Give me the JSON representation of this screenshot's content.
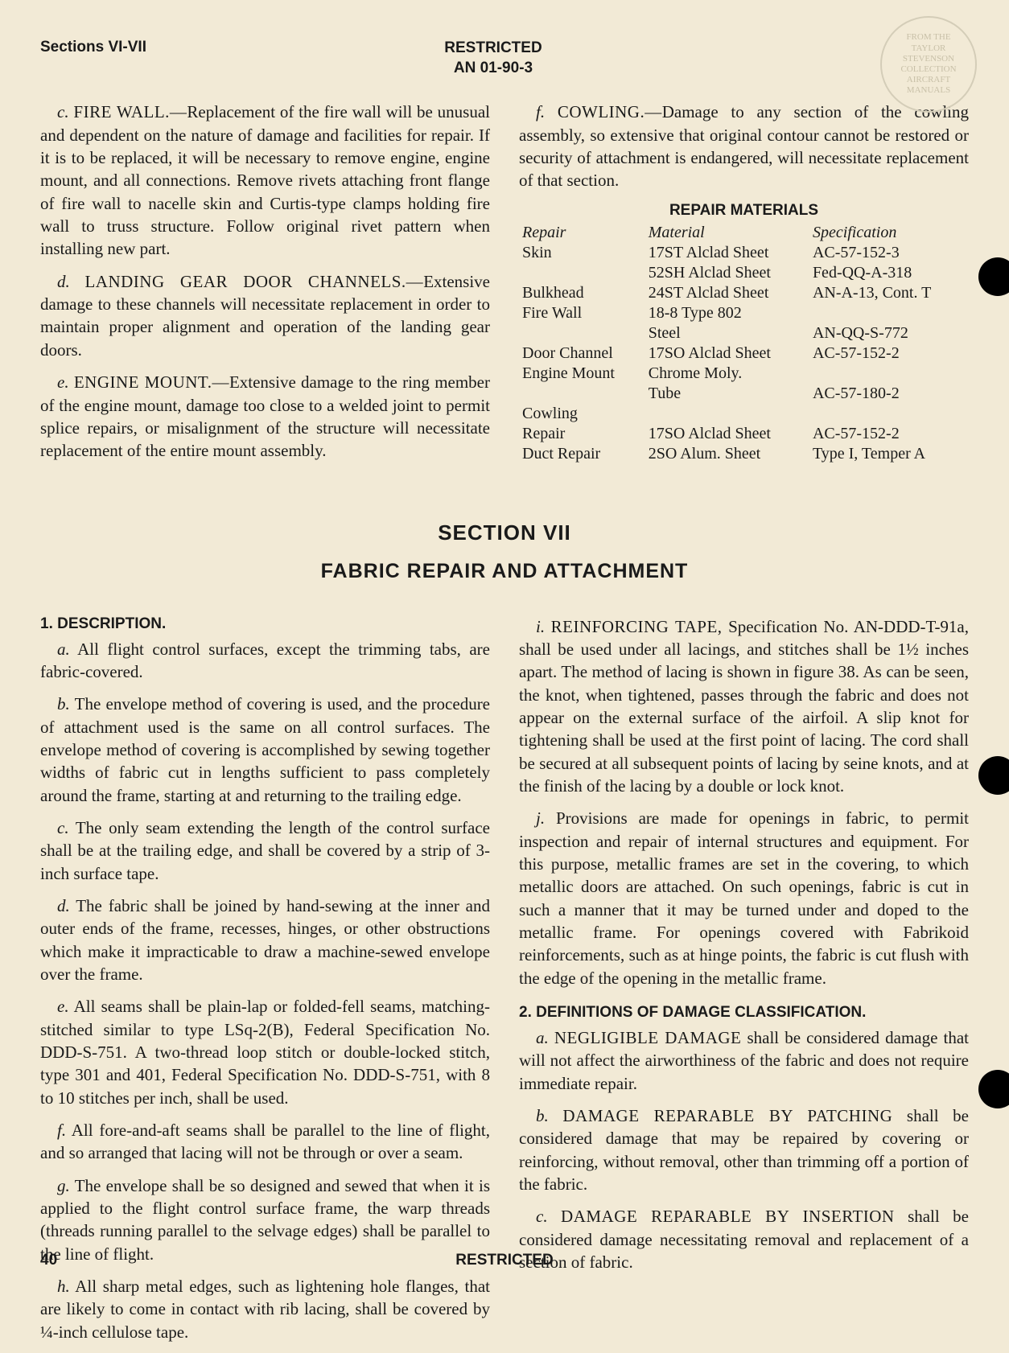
{
  "header": {
    "sections_label": "Sections VI-VII",
    "restricted": "RESTRICTED",
    "doc_no": "AN 01-90-3"
  },
  "stamp": {
    "line1": "FROM THE",
    "line2": "TAYLOR",
    "line3": "STEVENSON",
    "line4": "COLLECTION",
    "line5": "AIRCRAFT",
    "line6": "MANUALS"
  },
  "top_left": {
    "c_label": "c.",
    "c_title": "FIRE WALL.—",
    "c_text": "Replacement of the fire wall will be unusual and dependent on the nature of damage and facilities for repair. If it is to be replaced, it will be necessary to remove engine, engine mount, and all connections. Remove rivets attaching front flange of fire wall to nacelle skin and Curtis-type clamps holding fire wall to truss structure. Follow original rivet pattern when installing new part.",
    "d_label": "d.",
    "d_title": "LANDING GEAR DOOR CHANNELS.—",
    "d_text": "Extensive damage to these channels will necessitate replacement in order to maintain proper alignment and operation of the landing gear doors.",
    "e_label": "e.",
    "e_title": "ENGINE MOUNT.—",
    "e_text": "Extensive damage to the ring member of the engine mount, damage too close to a welded joint to permit splice repairs, or misalignment of the structure will necessitate replacement of the entire mount assembly."
  },
  "top_right": {
    "f_label": "f.",
    "f_title": "COWLING.—",
    "f_text": "Damage to any section of the cowling assembly, so extensive that original contour cannot be restored or security of attachment is endangered, will necessitate replacement of that section.",
    "table_title": "REPAIR MATERIALS",
    "cols": {
      "c1": "Repair",
      "c2": "Material",
      "c3": "Specification"
    },
    "rows": [
      {
        "c1": "Skin",
        "c2": "17ST Alclad Sheet",
        "c3": "AC-57-152-3"
      },
      {
        "c1": "",
        "c2": "52SH Alclad Sheet",
        "c3": "Fed-QQ-A-318"
      },
      {
        "c1": "Bulkhead",
        "c2": "24ST Alclad Sheet",
        "c3": "AN-A-13, Cont. T"
      },
      {
        "c1": "Fire Wall",
        "c2": "18-8 Type 802",
        "c3": ""
      },
      {
        "c1": "",
        "c2": "Steel",
        "c3": "AN-QQ-S-772"
      },
      {
        "c1": "Door Channel",
        "c2": "17SO Alclad Sheet",
        "c3": "AC-57-152-2"
      },
      {
        "c1": "Engine Mount",
        "c2": "Chrome Moly.",
        "c3": ""
      },
      {
        "c1": "",
        "c2": "Tube",
        "c3": "AC-57-180-2"
      },
      {
        "c1": "Cowling",
        "c2": "",
        "c3": ""
      },
      {
        "c1": "Repair",
        "c2": "17SO Alclad Sheet",
        "c3": "AC-57-152-2"
      },
      {
        "c1": "Duct Repair",
        "c2": "2SO Alum. Sheet",
        "c3": "Type I, Temper A"
      }
    ]
  },
  "section7": {
    "title": "SECTION VII",
    "subtitle": "FABRIC REPAIR AND ATTACHMENT"
  },
  "bottom_left": {
    "h1": "1. DESCRIPTION.",
    "a_label": "a.",
    "a_text": "All flight control surfaces, except the trimming tabs, are fabric-covered.",
    "b_label": "b.",
    "b_text": "The envelope method of covering is used, and the procedure of attachment used is the same on all control surfaces. The envelope method of covering is accomplished by sewing together widths of fabric cut in lengths sufficient to pass completely around the frame, starting at and returning to the trailing edge.",
    "c_label": "c.",
    "c_text": "The only seam extending the length of the control surface shall be at the trailing edge, and shall be covered by a strip of 3-inch surface tape.",
    "d_label": "d.",
    "d_text": "The fabric shall be joined by hand-sewing at the inner and outer ends of the frame, recesses, hinges, or other obstructions which make it impracticable to draw a machine-sewed envelope over the frame.",
    "e_label": "e.",
    "e_text": "All seams shall be plain-lap or folded-fell seams, matching-stitched similar to type LSq-2(B), Federal Specification No. DDD-S-751. A two-thread loop stitch or double-locked stitch, type 301 and 401, Federal Specification No. DDD-S-751, with 8 to 10 stitches per inch, shall be used.",
    "f_label": "f.",
    "f_text": "All fore-and-aft seams shall be parallel to the line of flight, and so arranged that lacing will not be through or over a seam.",
    "g_label": "g.",
    "g_text": "The envelope shall be so designed and sewed that when it is applied to the flight control surface frame, the warp threads (threads running parallel to the selvage edges) shall be parallel to the line of flight.",
    "h_label": "h.",
    "h_text": "All sharp metal edges, such as lightening hole flanges, that are likely to come in contact with rib lacing, shall be covered by ¼-inch cellulose tape."
  },
  "bottom_right": {
    "i_label": "i.",
    "i_title": "REINFORCING TAPE,",
    "i_text": "Specification No. AN-DDD-T-91a, shall be used under all lacings, and stitches shall be 1½ inches apart. The method of lacing is shown in figure 38. As can be seen, the knot, when tightened, passes through the fabric and does not appear on the external surface of the airfoil. A slip knot for tightening shall be used at the first point of lacing. The cord shall be secured at all subsequent points of lacing by seine knots, and at the finish of the lacing by a double or lock knot.",
    "j_label": "j.",
    "j_text": "Provisions are made for openings in fabric, to permit inspection and repair of internal structures and equipment. For this purpose, metallic frames are set in the covering, to which metallic doors are attached. On such openings, fabric is cut in such a manner that it may be turned under and doped to the metallic frame. For openings covered with Fabrikoid reinforcements, such as at hinge points, the fabric is cut flush with the edge of the opening in the metallic frame.",
    "h2": "2. DEFINITIONS OF DAMAGE CLASSIFICATION.",
    "a2_label": "a.",
    "a2_title": "NEGLIGIBLE DAMAGE",
    "a2_text": "shall be considered damage that will not affect the airworthiness of the fabric and does not require immediate repair.",
    "b2_label": "b.",
    "b2_title": "DAMAGE REPARABLE BY PATCHING",
    "b2_text": "shall be considered damage that may be repaired by covering or reinforcing, without removal, other than trimming off a portion of the fabric.",
    "c2_label": "c.",
    "c2_title": "DAMAGE REPARABLE BY INSERTION",
    "c2_text": "shall be considered damage necessitating removal and replacement of a section of fabric."
  },
  "footer": {
    "page": "40",
    "restricted": "RESTRICTED"
  }
}
